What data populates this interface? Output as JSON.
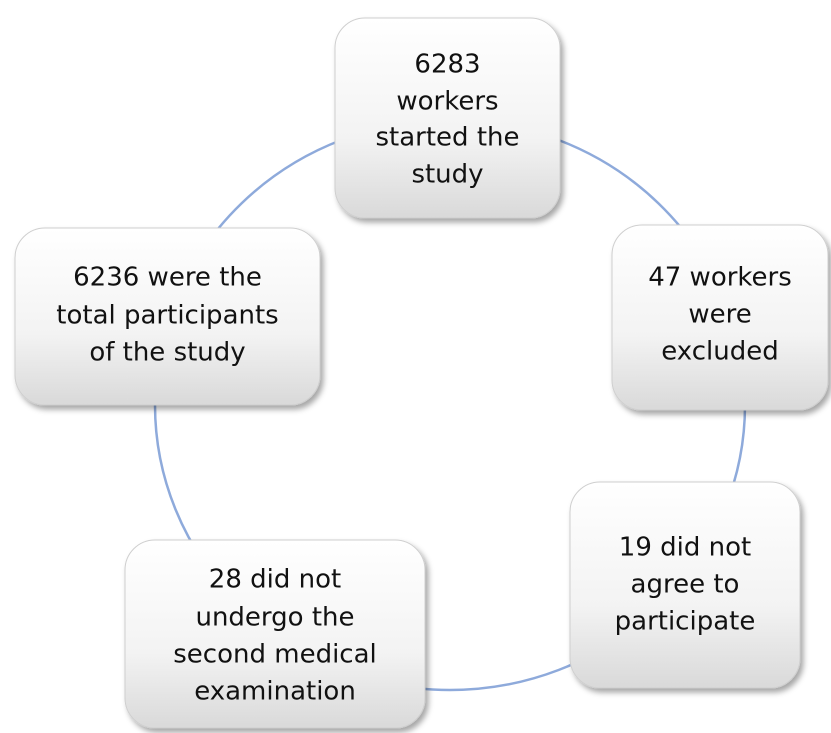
{
  "nodes": [
    {
      "lines": [
        "6283",
        "workers",
        "started the",
        "study"
      ]
    },
    {
      "lines": [
        "47 workers",
        "were",
        "excluded"
      ]
    },
    {
      "lines": [
        "19 did not",
        "agree to",
        "participate"
      ]
    },
    {
      "lines": [
        "28 did not",
        "undergo the",
        "second medical",
        "examination"
      ]
    },
    {
      "lines": [
        "6236 were the",
        "total participants",
        "of the study"
      ]
    }
  ]
}
